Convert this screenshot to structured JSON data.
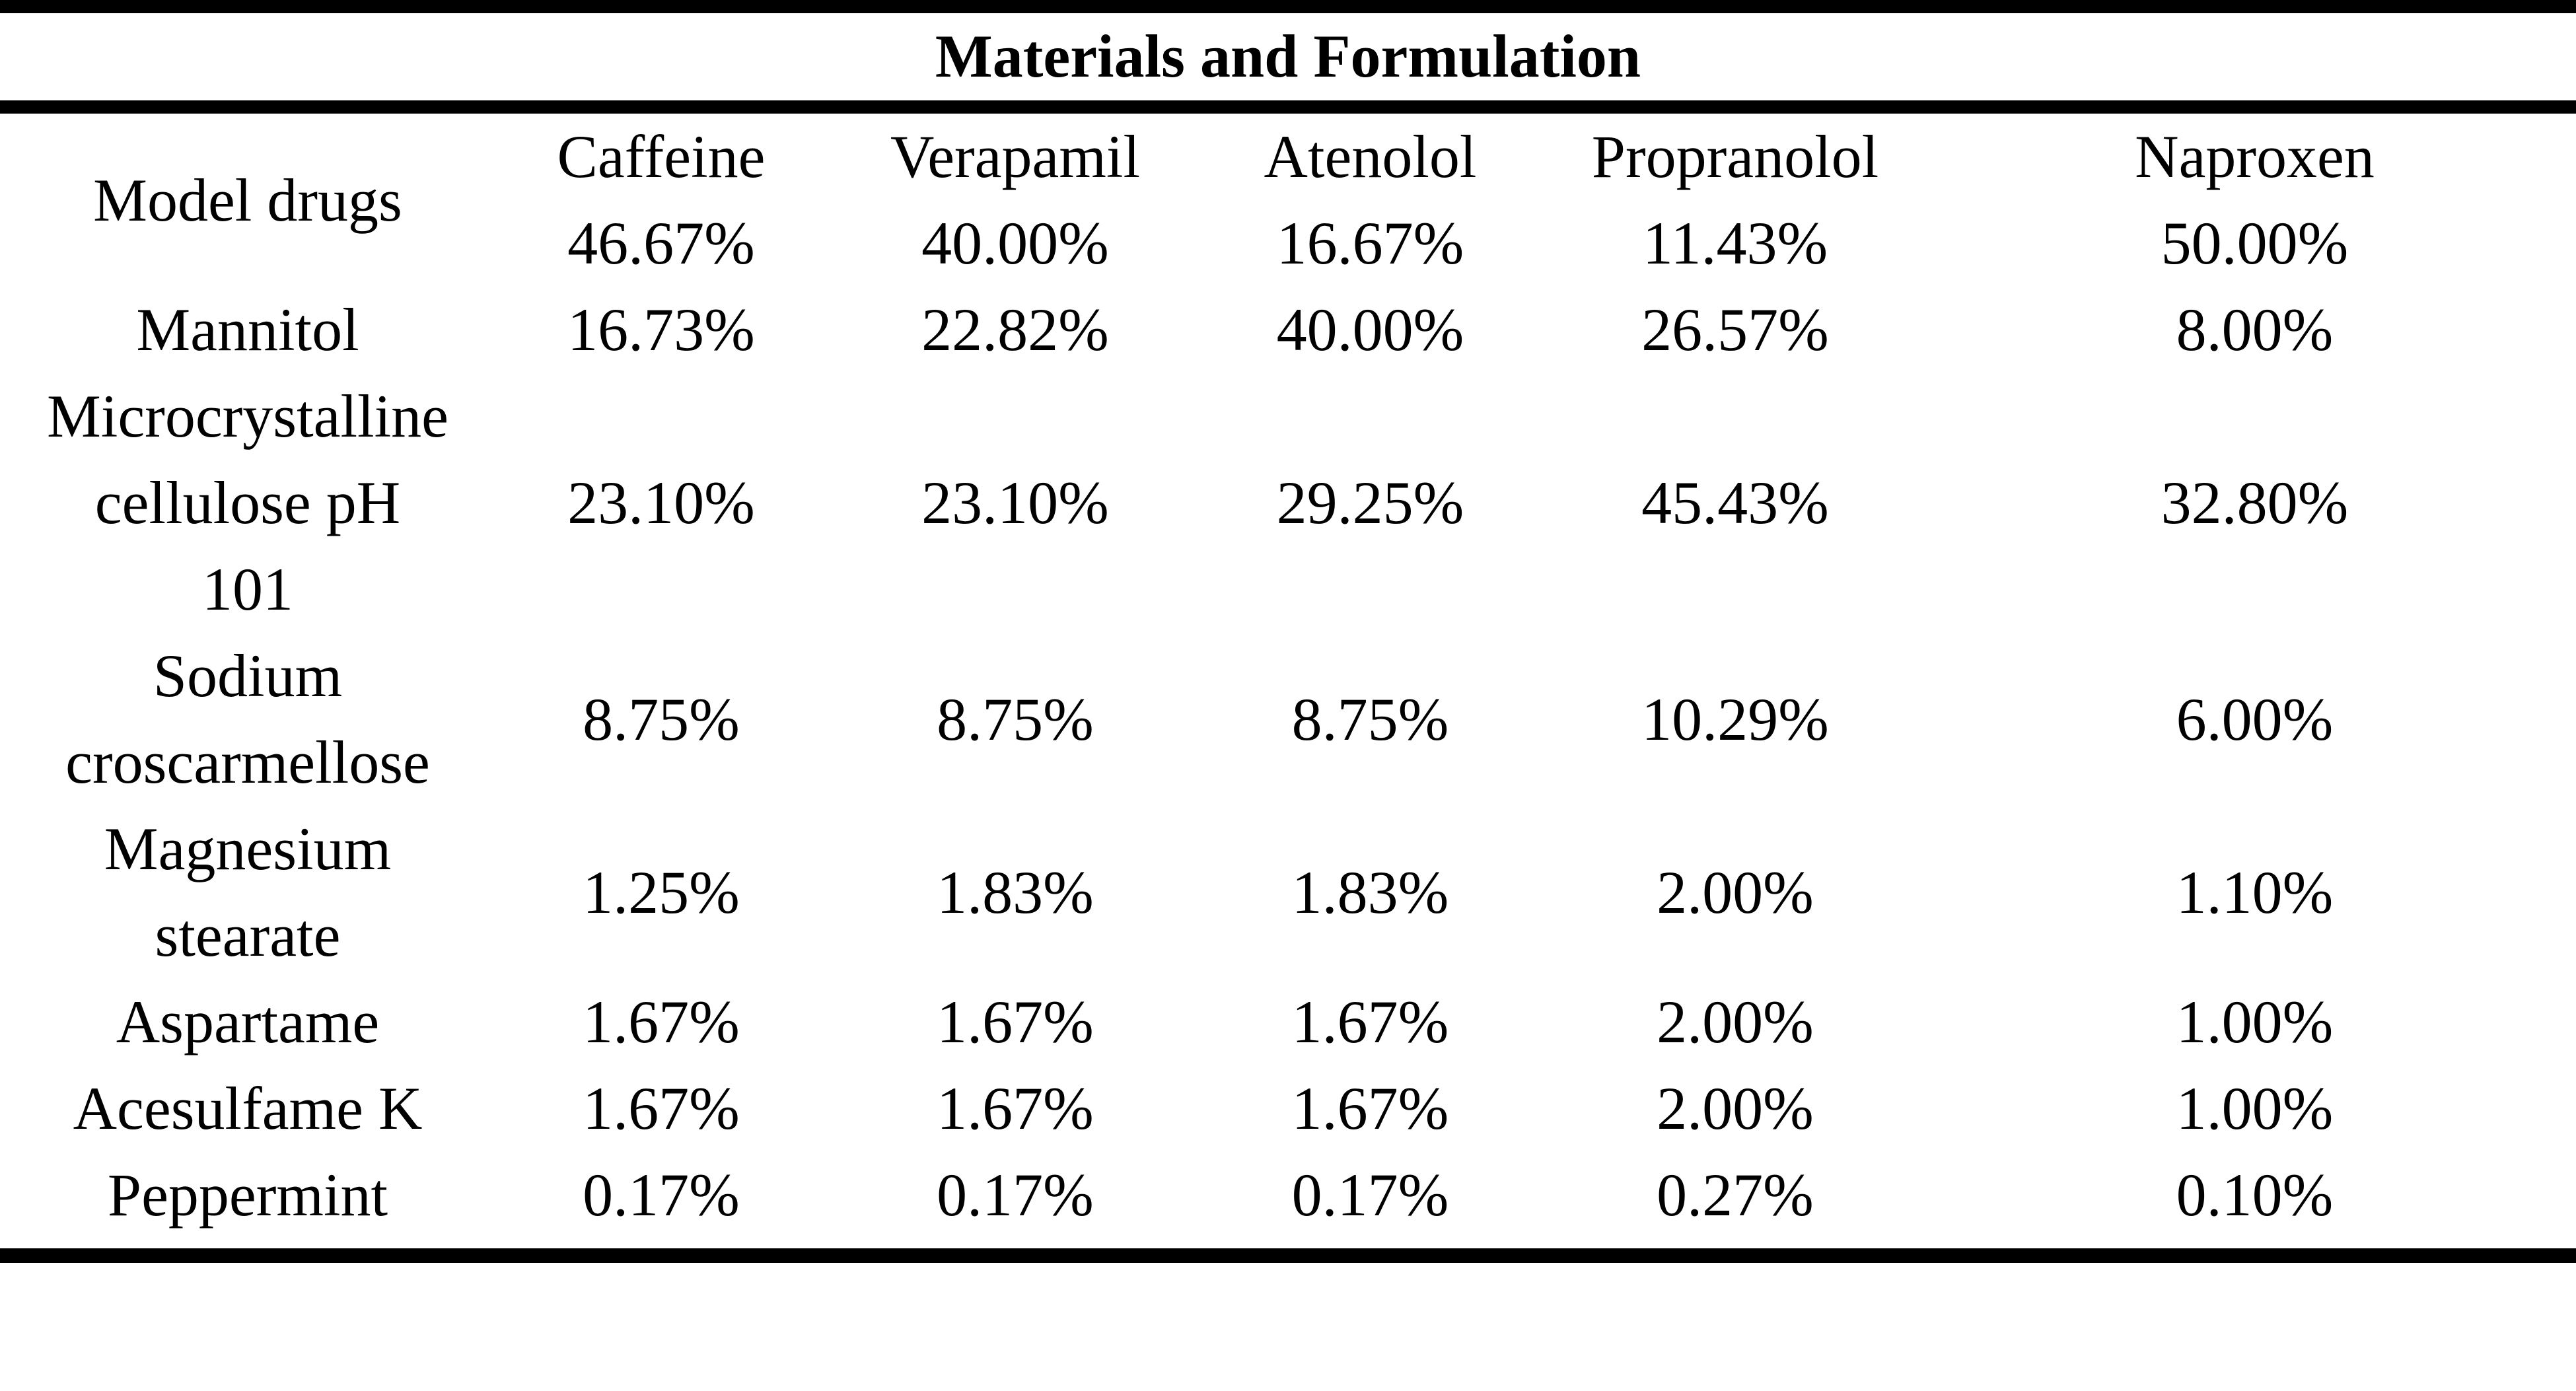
{
  "title": "Materials and Formulation",
  "header": {
    "label": "Model drugs",
    "drugs": [
      {
        "name": "Caffeine",
        "value": "46.67%"
      },
      {
        "name": "Verapamil",
        "value": "40.00%"
      },
      {
        "name": "Atenolol",
        "value": "16.67%"
      },
      {
        "name": "Propranolol",
        "value": "11.43%"
      },
      {
        "name": "Naproxen",
        "value": "50.00%"
      }
    ]
  },
  "rows": [
    {
      "label_lines": [
        "Mannitol"
      ],
      "values": [
        "16.73%",
        "22.82%",
        "40.00%",
        "26.57%",
        "8.00%"
      ]
    },
    {
      "label_lines": [
        "Microcrystalline",
        "cellulose pH",
        "101"
      ],
      "values": [
        "23.10%",
        "23.10%",
        "29.25%",
        "45.43%",
        "32.80%"
      ]
    },
    {
      "label_lines": [
        "Sodium",
        "croscarmellose"
      ],
      "values": [
        "8.75%",
        "8.75%",
        "8.75%",
        "10.29%",
        "6.00%"
      ]
    },
    {
      "label_lines": [
        "Magnesium",
        "stearate"
      ],
      "values": [
        "1.25%",
        "1.83%",
        "1.83%",
        "2.00%",
        "1.10%"
      ]
    },
    {
      "label_lines": [
        "Aspartame"
      ],
      "values": [
        "1.67%",
        "1.67%",
        "1.67%",
        "2.00%",
        "1.00%"
      ]
    },
    {
      "label_lines": [
        "Acesulfame K"
      ],
      "values": [
        "1.67%",
        "1.67%",
        "1.67%",
        "2.00%",
        "1.00%"
      ]
    },
    {
      "label_lines": [
        "Peppermint"
      ],
      "values": [
        "0.17%",
        "0.17%",
        "0.17%",
        "0.27%",
        "0.10%"
      ]
    }
  ]
}
